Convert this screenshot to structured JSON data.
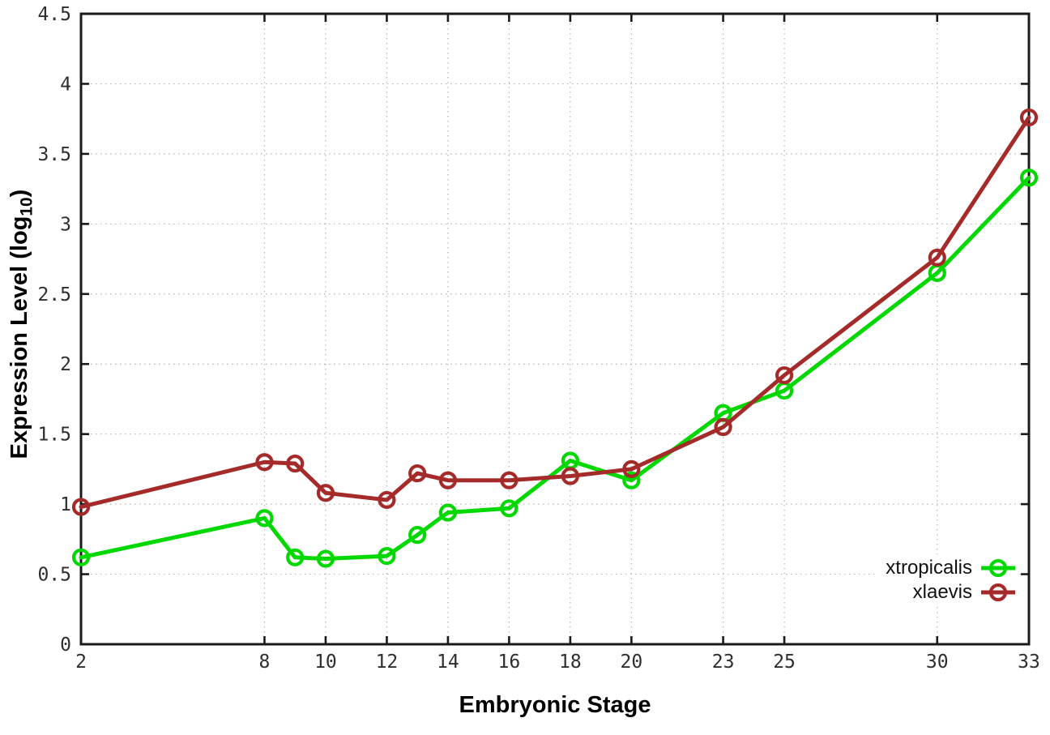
{
  "chart_data": {
    "type": "line",
    "title": "",
    "xlabel": "Embryonic Stage",
    "ylabel": "Expression Level (log10)",
    "ylabel_parts": {
      "main": "Expression Level (log",
      "sub": "10",
      "close": ")"
    },
    "x": [
      2,
      8,
      9,
      10,
      12,
      13,
      14,
      16,
      18,
      20,
      23,
      25,
      30,
      33
    ],
    "series": [
      {
        "name": "xtropicalis",
        "color": "#00d800",
        "values": [
          0.62,
          0.9,
          0.62,
          0.61,
          0.63,
          0.78,
          0.94,
          0.97,
          1.31,
          1.17,
          1.65,
          1.81,
          2.65,
          3.33
        ]
      },
      {
        "name": "xlaevis",
        "color": "#a52a2a",
        "values": [
          0.98,
          1.3,
          1.29,
          1.08,
          1.03,
          1.22,
          1.17,
          1.17,
          1.2,
          1.25,
          1.55,
          1.92,
          2.76,
          3.76
        ]
      }
    ],
    "x_ticks": [
      2,
      8,
      10,
      12,
      14,
      16,
      18,
      20,
      23,
      25,
      30,
      33
    ],
    "y_ticks": [
      0,
      0.5,
      1,
      1.5,
      2,
      2.5,
      3,
      3.5,
      4,
      4.5
    ],
    "xlim": [
      2,
      33
    ],
    "ylim": [
      0,
      4.5
    ],
    "grid": true,
    "legend_position": "bottom-right",
    "colors": {
      "border": "#1a1a1a",
      "gridline": "#b4b4b4",
      "tick_text": "#2e2e2e"
    }
  }
}
